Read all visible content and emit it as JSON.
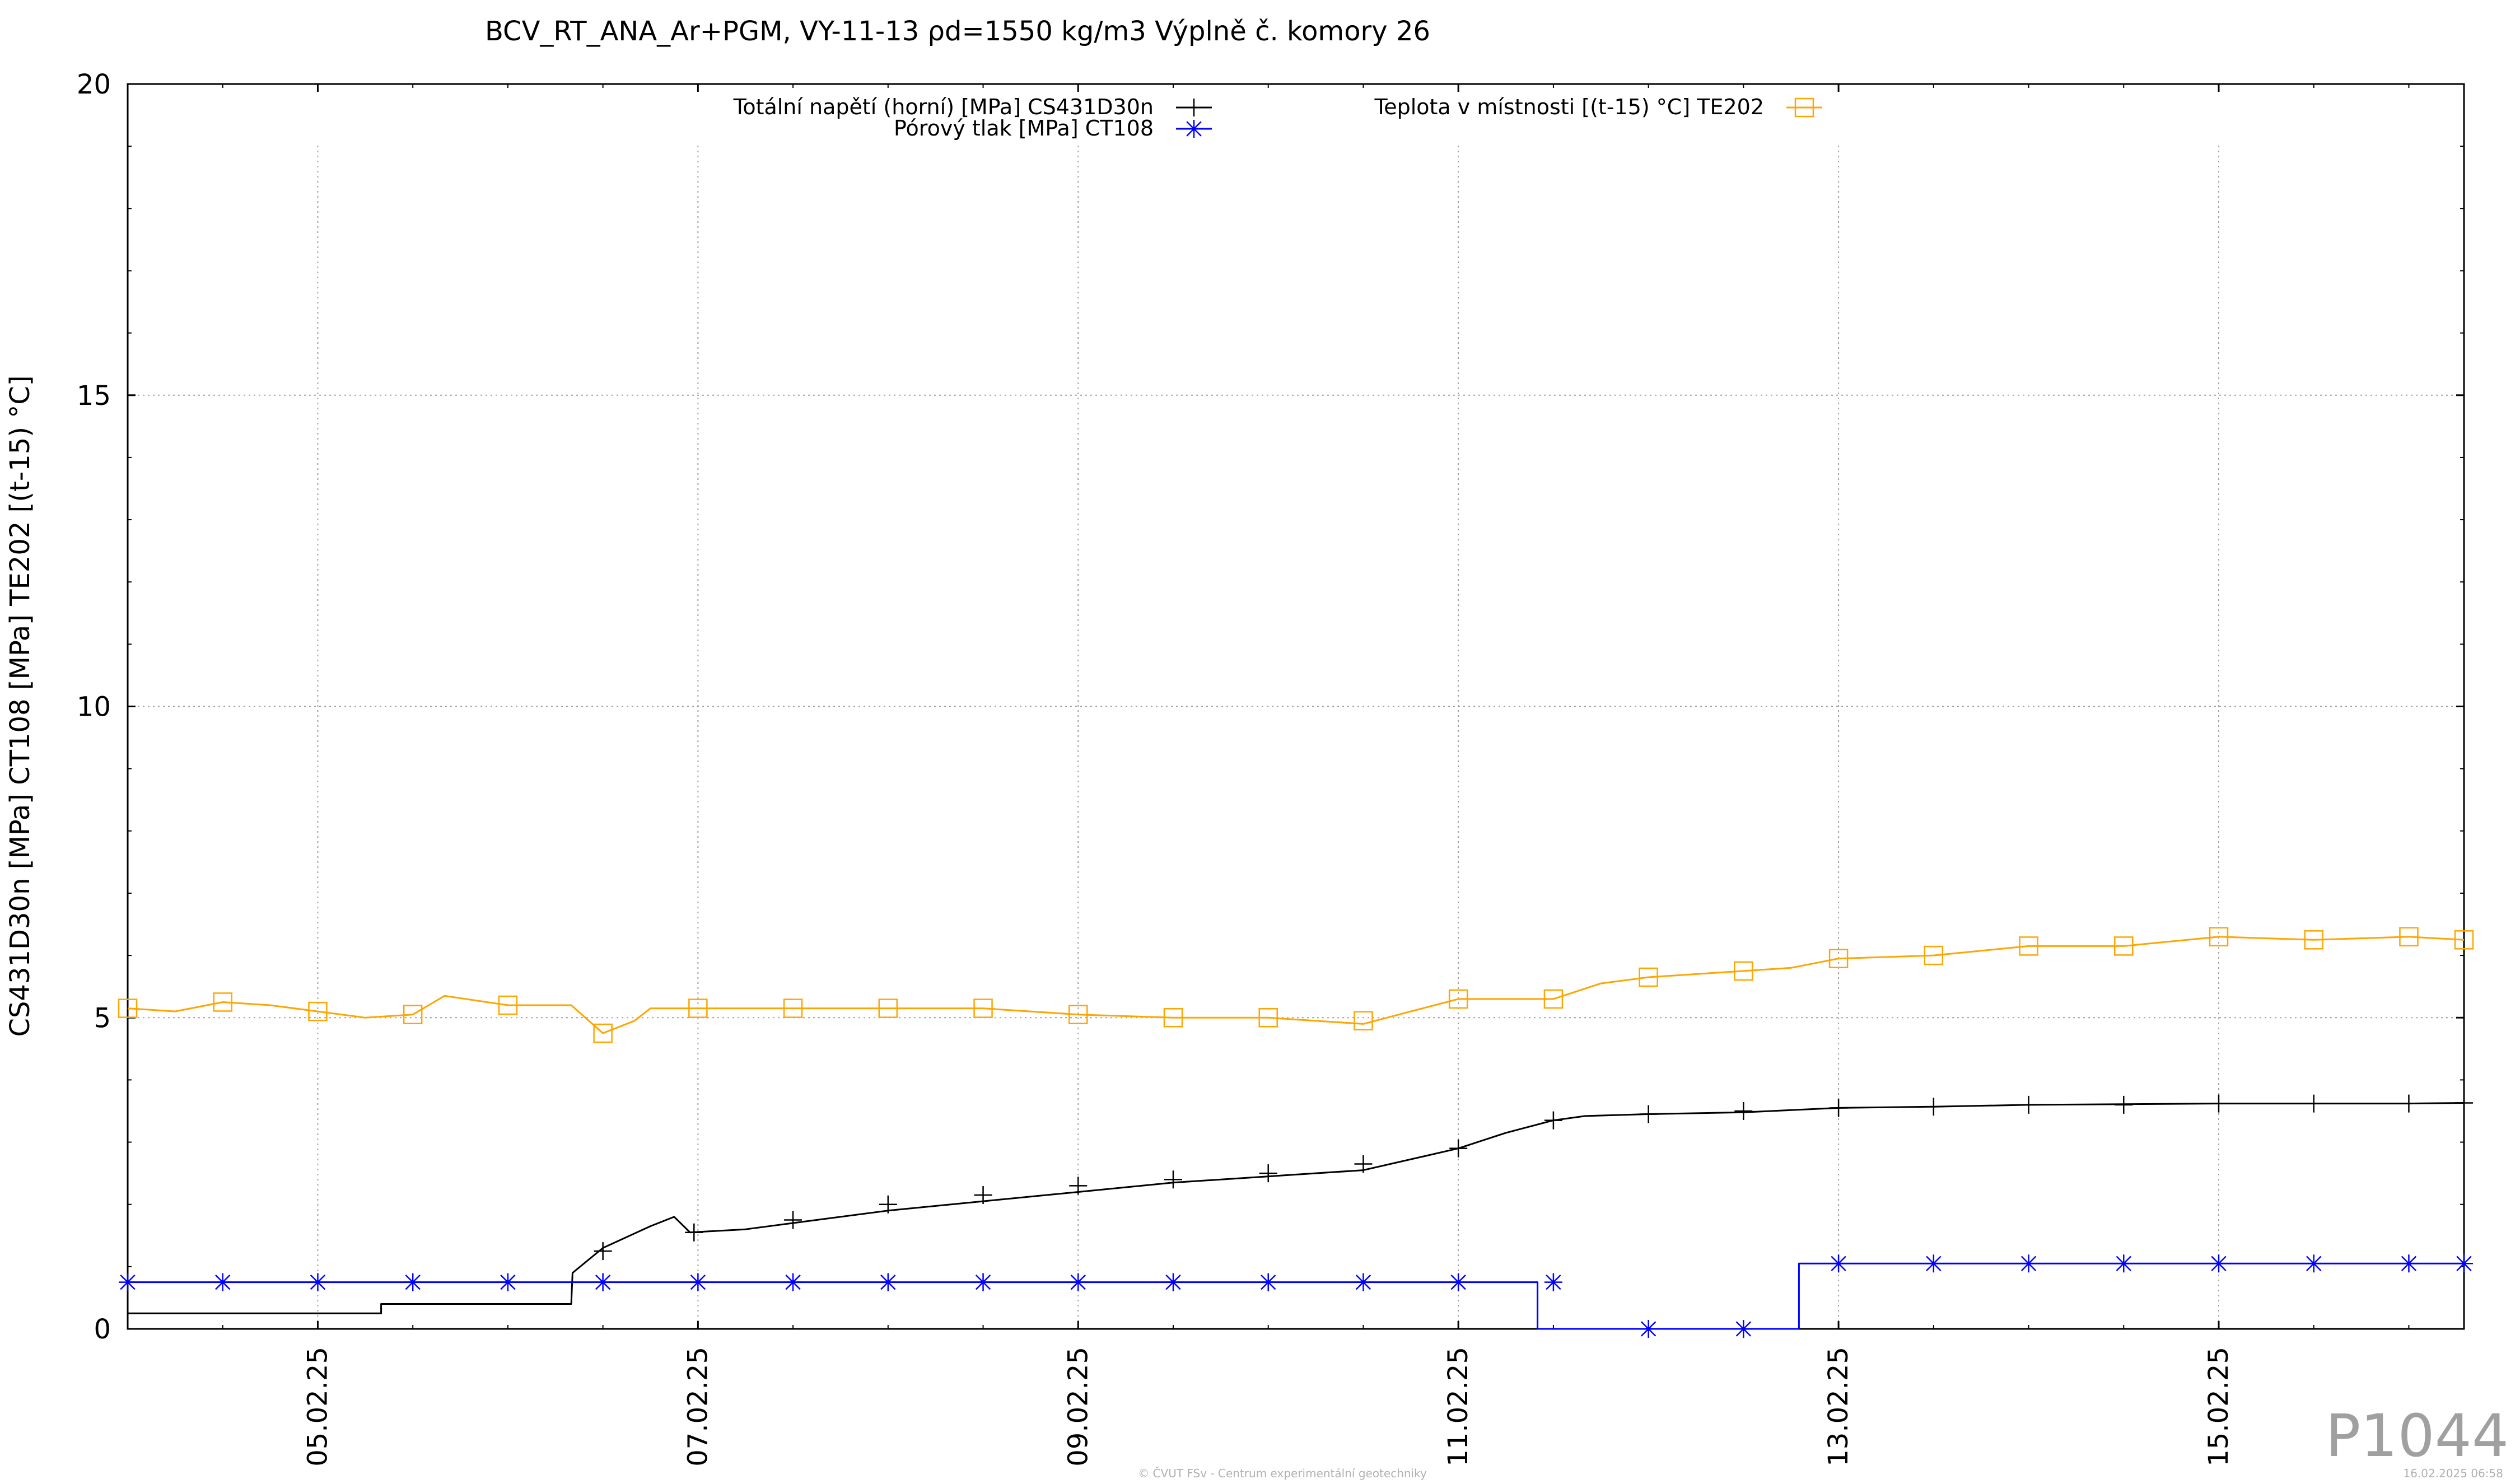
{
  "chart_data": {
    "type": "line",
    "title": "BCV_RT_ANA_Ar+PGM, VY-11-13 ρd=1550 kg/m3 Výplně č. komory 26",
    "xlabel": "",
    "ylabel": "CS431D30n [MPa] CT108 [MPa] TE202 [(t-15) °C]",
    "xlim": [
      "04.02.25 00:00",
      "16.02.25 06:58"
    ],
    "ylim": [
      0,
      20
    ],
    "y_ticks": [
      "0",
      "5",
      "10",
      "15",
      "20"
    ],
    "x_ticks": [
      {
        "label": "05.02.25",
        "x": "05.02.25 00:00"
      },
      {
        "label": "07.02.25",
        "x": "07.02.25 00:00"
      },
      {
        "label": "09.02.25",
        "x": "09.02.25 00:00"
      },
      {
        "label": "11.02.25",
        "x": "11.02.25 00:00"
      },
      {
        "label": "13.02.25",
        "x": "13.02.25 00:00"
      },
      {
        "label": "15.02.25",
        "x": "15.02.25 00:00"
      }
    ],
    "grid": true,
    "legend_position": "top",
    "series": [
      {
        "name": "Totální napětí (horní) [MPa] CS431D30n",
        "color": "#000000",
        "marker": "plus",
        "points": [
          [
            "04.02.25 00:00",
            0.25
          ],
          [
            "04.02.25 12:00",
            0.25
          ],
          [
            "05.02.25 00:00",
            0.25
          ],
          [
            "05.02.25 08:00",
            0.25
          ],
          [
            "05.02.25 08:00",
            0.4
          ],
          [
            "05.02.25 16:00",
            0.4
          ],
          [
            "06.02.25 00:00",
            0.4
          ],
          [
            "06.02.25 08:00",
            0.4
          ],
          [
            "06.02.25 08:10",
            0.9
          ],
          [
            "06.02.25 12:00",
            1.3
          ],
          [
            "06.02.25 18:00",
            1.65
          ],
          [
            "06.02.25 21:00",
            1.8
          ],
          [
            "06.02.25 23:00",
            1.55
          ],
          [
            "07.02.25 06:00",
            1.6
          ],
          [
            "07.02.25 12:00",
            1.7
          ],
          [
            "08.02.25 00:00",
            1.9
          ],
          [
            "08.02.25 12:00",
            2.05
          ],
          [
            "09.02.25 00:00",
            2.2
          ],
          [
            "09.02.25 12:00",
            2.35
          ],
          [
            "10.02.25 00:00",
            2.45
          ],
          [
            "10.02.25 12:00",
            2.55
          ],
          [
            "11.02.25 00:00",
            2.9
          ],
          [
            "11.02.25 06:00",
            3.15
          ],
          [
            "11.02.25 12:00",
            3.35
          ],
          [
            "11.02.25 16:00",
            3.42
          ],
          [
            "12.02.25 00:00",
            3.45
          ],
          [
            "12.02.25 12:00",
            3.48
          ],
          [
            "13.02.25 00:00",
            3.55
          ],
          [
            "13.02.25 12:00",
            3.57
          ],
          [
            "14.02.25 00:00",
            3.6
          ],
          [
            "15.02.25 00:00",
            3.62
          ],
          [
            "16.02.25 00:00",
            3.62
          ],
          [
            "16.02.25 06:58",
            3.63
          ]
        ],
        "marker_points": [
          [
            "06.02.25 12:00",
            1.25
          ],
          [
            "06.02.25 23:30",
            1.55
          ],
          [
            "07.02.25 12:00",
            1.75
          ],
          [
            "08.02.25 00:00",
            2.0
          ],
          [
            "08.02.25 12:00",
            2.15
          ],
          [
            "09.02.25 00:00",
            2.3
          ],
          [
            "09.02.25 12:00",
            2.4
          ],
          [
            "10.02.25 00:00",
            2.5
          ],
          [
            "10.02.25 12:00",
            2.65
          ],
          [
            "11.02.25 00:00",
            2.9
          ],
          [
            "11.02.25 12:00",
            3.35
          ],
          [
            "12.02.25 00:00",
            3.45
          ],
          [
            "12.02.25 12:00",
            3.5
          ],
          [
            "13.02.25 00:00",
            3.55
          ],
          [
            "13.02.25 12:00",
            3.57
          ],
          [
            "14.02.25 00:00",
            3.6
          ],
          [
            "14.02.25 12:00",
            3.6
          ],
          [
            "15.02.25 00:00",
            3.62
          ],
          [
            "15.02.25 12:00",
            3.62
          ],
          [
            "16.02.25 00:00",
            3.62
          ],
          [
            "16.02.25 06:58",
            3.63
          ]
        ]
      },
      {
        "name": "Pórový tlak [MPa] CT108",
        "color": "#0000ff",
        "marker": "asterisk",
        "points": [
          [
            "04.02.25 00:00",
            0.75
          ],
          [
            "11.02.25 10:00",
            0.75
          ],
          [
            "11.02.25 10:00",
            0.0
          ],
          [
            "12.02.25 19:00",
            0.0
          ],
          [
            "12.02.25 19:00",
            1.05
          ],
          [
            "16.02.25 06:58",
            1.05
          ]
        ],
        "marker_points": [
          [
            "04.02.25 00:00",
            0.75
          ],
          [
            "04.02.25 12:00",
            0.75
          ],
          [
            "05.02.25 00:00",
            0.75
          ],
          [
            "05.02.25 12:00",
            0.75
          ],
          [
            "06.02.25 00:00",
            0.75
          ],
          [
            "06.02.25 12:00",
            0.75
          ],
          [
            "07.02.25 00:00",
            0.75
          ],
          [
            "07.02.25 12:00",
            0.75
          ],
          [
            "08.02.25 00:00",
            0.75
          ],
          [
            "08.02.25 12:00",
            0.75
          ],
          [
            "09.02.25 00:00",
            0.75
          ],
          [
            "09.02.25 12:00",
            0.75
          ],
          [
            "10.02.25 00:00",
            0.75
          ],
          [
            "10.02.25 12:00",
            0.75
          ],
          [
            "11.02.25 00:00",
            0.75
          ],
          [
            "11.02.25 12:00",
            0.75
          ],
          [
            "12.02.25 00:00",
            0.0
          ],
          [
            "12.02.25 12:00",
            0.0
          ],
          [
            "13.02.25 00:00",
            1.05
          ],
          [
            "13.02.25 12:00",
            1.05
          ],
          [
            "14.02.25 00:00",
            1.05
          ],
          [
            "14.02.25 12:00",
            1.05
          ],
          [
            "15.02.25 00:00",
            1.05
          ],
          [
            "15.02.25 12:00",
            1.05
          ],
          [
            "16.02.25 00:00",
            1.05
          ],
          [
            "16.02.25 06:58",
            1.05
          ]
        ]
      },
      {
        "name": "Teplota v místnosti [(t-15) °C] TE202",
        "color": "#ffa500",
        "marker": "square",
        "points": [
          [
            "04.02.25 00:00",
            5.15
          ],
          [
            "04.02.25 06:00",
            5.1
          ],
          [
            "04.02.25 12:00",
            5.25
          ],
          [
            "04.02.25 18:00",
            5.2
          ],
          [
            "05.02.25 00:00",
            5.1
          ],
          [
            "05.02.25 06:00",
            5.0
          ],
          [
            "05.02.25 12:00",
            5.05
          ],
          [
            "05.02.25 16:00",
            5.35
          ],
          [
            "06.02.25 00:00",
            5.2
          ],
          [
            "06.02.25 08:00",
            5.2
          ],
          [
            "06.02.25 12:00",
            4.75
          ],
          [
            "06.02.25 16:00",
            4.95
          ],
          [
            "06.02.25 18:00",
            5.15
          ],
          [
            "07.02.25 00:00",
            5.15
          ],
          [
            "07.02.25 12:00",
            5.15
          ],
          [
            "08.02.25 00:00",
            5.15
          ],
          [
            "08.02.25 12:00",
            5.15
          ],
          [
            "09.02.25 00:00",
            5.05
          ],
          [
            "09.02.25 12:00",
            5.0
          ],
          [
            "10.02.25 00:00",
            5.0
          ],
          [
            "10.02.25 12:00",
            4.9
          ],
          [
            "10.02.25 18:00",
            5.1
          ],
          [
            "11.02.25 00:00",
            5.3
          ],
          [
            "11.02.25 12:00",
            5.3
          ],
          [
            "11.02.25 18:00",
            5.55
          ],
          [
            "12.02.25 00:00",
            5.65
          ],
          [
            "12.02.25 12:00",
            5.75
          ],
          [
            "12.02.25 18:00",
            5.8
          ],
          [
            "13.02.25 00:00",
            5.95
          ],
          [
            "13.02.25 12:00",
            6.0
          ],
          [
            "14.02.25 00:00",
            6.15
          ],
          [
            "14.02.25 12:00",
            6.15
          ],
          [
            "15.02.25 00:00",
            6.3
          ],
          [
            "15.02.25 12:00",
            6.25
          ],
          [
            "16.02.25 00:00",
            6.3
          ],
          [
            "16.02.25 06:58",
            6.25
          ]
        ],
        "marker_points": [
          [
            "04.02.25 00:00",
            5.15
          ],
          [
            "04.02.25 12:00",
            5.25
          ],
          [
            "05.02.25 00:00",
            5.1
          ],
          [
            "05.02.25 12:00",
            5.05
          ],
          [
            "06.02.25 00:00",
            5.2
          ],
          [
            "06.02.25 12:00",
            4.75
          ],
          [
            "07.02.25 00:00",
            5.15
          ],
          [
            "07.02.25 12:00",
            5.15
          ],
          [
            "08.02.25 00:00",
            5.15
          ],
          [
            "08.02.25 12:00",
            5.15
          ],
          [
            "09.02.25 00:00",
            5.05
          ],
          [
            "09.02.25 12:00",
            5.0
          ],
          [
            "10.02.25 00:00",
            5.0
          ],
          [
            "10.02.25 12:00",
            4.95
          ],
          [
            "11.02.25 00:00",
            5.3
          ],
          [
            "11.02.25 12:00",
            5.3
          ],
          [
            "12.02.25 00:00",
            5.65
          ],
          [
            "12.02.25 12:00",
            5.75
          ],
          [
            "13.02.25 00:00",
            5.95
          ],
          [
            "13.02.25 12:00",
            6.0
          ],
          [
            "14.02.25 00:00",
            6.15
          ],
          [
            "14.02.25 12:00",
            6.15
          ],
          [
            "15.02.25 00:00",
            6.3
          ],
          [
            "15.02.25 12:00",
            6.25
          ],
          [
            "16.02.25 00:00",
            6.3
          ],
          [
            "16.02.25 06:58",
            6.25
          ]
        ]
      }
    ]
  },
  "page": {
    "plot_id": "P1044",
    "copyright": "© ČVUT FSv - Centrum experimentální geotechniky",
    "timestamp": "16.02.2025 06:58"
  }
}
